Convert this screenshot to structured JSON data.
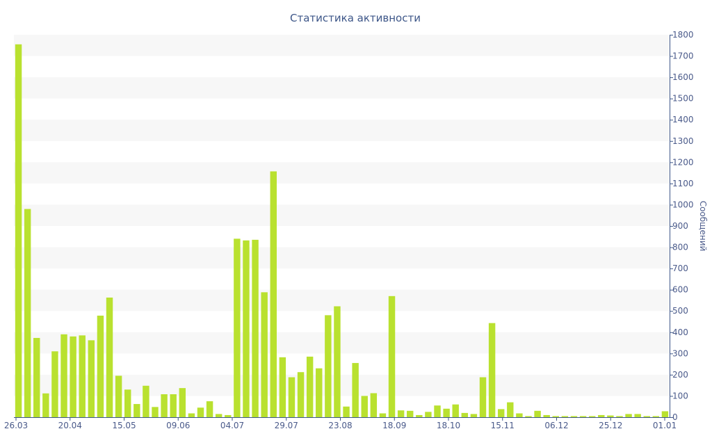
{
  "chart_data": {
    "type": "bar",
    "title": "Статистика активности",
    "ylabel": "Сообщений",
    "ylim": [
      0,
      1800
    ],
    "y_ticks": [
      0,
      100,
      200,
      300,
      400,
      500,
      600,
      700,
      800,
      900,
      1000,
      1100,
      1200,
      1300,
      1400,
      1500,
      1600,
      1700,
      1800
    ],
    "y_axis_position": "right",
    "x_tick_labels": [
      "26.03",
      "20.04",
      "15.05",
      "09.06",
      "04.07",
      "29.07",
      "23.08",
      "18.09",
      "18.10",
      "15.11",
      "06.12",
      "25.12",
      "01.01"
    ],
    "bar_color": "#b9e12f",
    "values": [
      1755,
      980,
      373,
      112,
      310,
      390,
      380,
      385,
      362,
      478,
      563,
      195,
      130,
      62,
      148,
      48,
      108,
      108,
      137,
      18,
      45,
      75,
      15,
      10,
      840,
      832,
      835,
      588,
      1157,
      282,
      188,
      212,
      285,
      230,
      480,
      522,
      50,
      255,
      100,
      113,
      18,
      570,
      32,
      30,
      10,
      25,
      55,
      40,
      60,
      20,
      15,
      188,
      443,
      38,
      70,
      18,
      5,
      30,
      10,
      5,
      5,
      5,
      5,
      5,
      10,
      8,
      5,
      15,
      15,
      5,
      5,
      28
    ]
  }
}
